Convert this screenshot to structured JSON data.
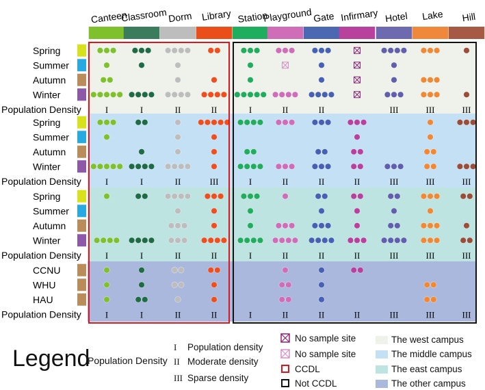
{
  "columns": [
    "Canteen",
    "Classroom",
    "Dorm",
    "Library",
    "Station",
    "Playground",
    "Gate",
    "Infirmary",
    "Hotel",
    "Lake",
    "Hill"
  ],
  "column_colors": [
    "#7ec12c",
    "#3a7c5c",
    "#bdbdbd",
    "#ea4f1a",
    "#1fad5e",
    "#cf6db8",
    "#4d68b3",
    "#b8419e",
    "#6d6aaf",
    "#f0883c",
    "#a65a45"
  ],
  "dot_colors": [
    "#7ec12c",
    "#1f6b45",
    "#bdbdbd",
    "#ef4e1f",
    "#22ad5e",
    "#cf6db8",
    "#4660b4",
    "#b8419e",
    "#5f5fae",
    "#f18834",
    "#9a4d39"
  ],
  "season_colors": {
    "Spring": "#d7e21c",
    "Summer": "#27a9e1",
    "Autumn": "#b98c5a",
    "Winter": "#8e58a9",
    "School": "#b98c5a"
  },
  "bands": [
    {
      "name": "The west campus",
      "color": "#eef2ea",
      "rows": [
        {
          "label": "Spring",
          "counts": [
            3,
            3,
            4,
            2,
            3,
            3,
            3,
            "x",
            4,
            3,
            1
          ]
        },
        {
          "label": "Summer",
          "counts": [
            1,
            1,
            1,
            0,
            1,
            "x",
            1,
            "x",
            1,
            0,
            0
          ]
        },
        {
          "label": "Autumn",
          "counts": [
            2,
            0,
            1,
            1,
            1,
            0,
            1,
            "x",
            1,
            3,
            0
          ]
        },
        {
          "label": "Winter",
          "counts": [
            5,
            4,
            4,
            4,
            5,
            4,
            4,
            "x",
            3,
            3,
            1
          ]
        }
      ],
      "density": [
        "I",
        "I",
        "II",
        "II",
        "I",
        "II",
        "II",
        "",
        "III",
        "III",
        "III"
      ]
    },
    {
      "name": "The middle campus",
      "color": "#c4e0f4",
      "rows": [
        {
          "label": "Spring",
          "counts": [
            3,
            2,
            1,
            5,
            4,
            3,
            3,
            3,
            0,
            1,
            3
          ]
        },
        {
          "label": "Summer",
          "counts": [
            1,
            0,
            1,
            1,
            0,
            0,
            0,
            1,
            0,
            1,
            0
          ]
        },
        {
          "label": "Autumn",
          "counts": [
            0,
            1,
            1,
            1,
            2,
            0,
            2,
            2,
            0,
            2,
            0
          ]
        },
        {
          "label": "Winter",
          "counts": [
            5,
            4,
            4,
            1,
            4,
            3,
            3,
            2,
            3,
            2,
            3
          ]
        }
      ],
      "density": [
        "I",
        "I",
        "II",
        "III",
        "I",
        "II",
        "II",
        "II",
        "III",
        "III",
        "III"
      ]
    },
    {
      "name": "The east campus",
      "color": "#bde4e1",
      "rows": [
        {
          "label": "Spring",
          "counts": [
            1,
            2,
            4,
            3,
            3,
            1,
            2,
            2,
            2,
            3,
            2
          ]
        },
        {
          "label": "Summer",
          "counts": [
            0,
            0,
            1,
            1,
            1,
            0,
            1,
            1,
            1,
            1,
            0
          ]
        },
        {
          "label": "Autumn",
          "counts": [
            0,
            0,
            3,
            1,
            1,
            3,
            3,
            1,
            2,
            3,
            1
          ]
        },
        {
          "label": "Winter",
          "counts": [
            4,
            4,
            3,
            4,
            4,
            4,
            4,
            3,
            4,
            3,
            2
          ]
        }
      ],
      "density": [
        "I",
        "I",
        "II",
        "II",
        "I",
        "II",
        "II",
        "II",
        "III",
        "III",
        "III"
      ]
    },
    {
      "name": "The other campus",
      "color": "#a9b8dc",
      "rows": [
        {
          "label": "CCNU",
          "counts": [
            1,
            1,
            2,
            2,
            0,
            1,
            1,
            2,
            0,
            0,
            0
          ]
        },
        {
          "label": "WHU",
          "counts": [
            1,
            1,
            2,
            1,
            0,
            2,
            1,
            0,
            0,
            2,
            0
          ]
        },
        {
          "label": "HAU",
          "counts": [
            1,
            2,
            1,
            1,
            0,
            2,
            1,
            0,
            0,
            2,
            0
          ]
        }
      ],
      "density": [
        "I",
        "I",
        "II",
        "II",
        "I",
        "II",
        "II",
        "II",
        "III",
        "III",
        "III"
      ]
    }
  ],
  "row_label_pop": "Population Density",
  "legend": {
    "title": "Legend",
    "density_label": "Population Density",
    "density_items": [
      {
        "symbol": "I",
        "text": "Population density"
      },
      {
        "symbol": "II",
        "text": "Moderate density"
      },
      {
        "symbol": "III",
        "text": "Sparse density"
      }
    ],
    "site_items": [
      {
        "kind": "nosample-dark",
        "text": "No sample site"
      },
      {
        "kind": "nosample-light",
        "text": "No sample site"
      },
      {
        "kind": "ccdl",
        "text": "CCDL",
        "color": "#e0141c"
      },
      {
        "kind": "notccdl",
        "text": "Not CCDL",
        "color": "#111111"
      }
    ],
    "campus_items": [
      {
        "text": "The west campus",
        "color": "#eef2ea"
      },
      {
        "text": "The middle campus",
        "color": "#c4e0f4"
      },
      {
        "text": "The east campus",
        "color": "#bde4e1"
      },
      {
        "text": "The other campus",
        "color": "#a9b8dc"
      }
    ]
  }
}
